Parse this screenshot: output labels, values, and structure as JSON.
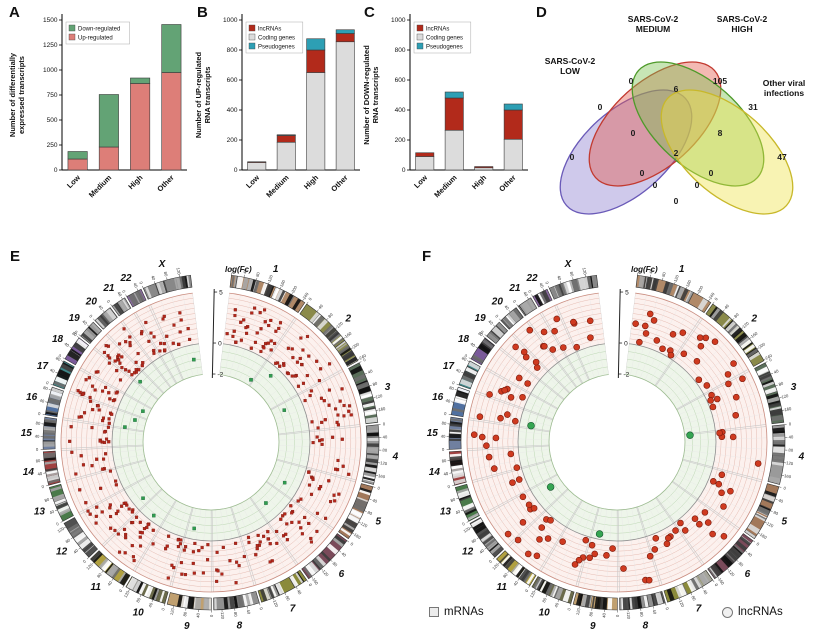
{
  "figure": {
    "panel_labels": {
      "A": "A",
      "B": "B",
      "C": "C",
      "D": "D",
      "E": "E",
      "F": "F"
    }
  },
  "circos_style": {
    "chr_colors": [
      "#b08968",
      "#8a8a4a",
      "#5a6e5a",
      "#9a9a9a",
      "#a2785a",
      "#7a4a5a",
      "#8a8a3a",
      "#909090",
      "#c0a070",
      "#6a6a4a",
      "#b0a040",
      "#505050",
      "#4a7a4a",
      "#a04040",
      "#7080a0",
      "#5070a0",
      "#40888a",
      "#7a5a9a",
      "#909090",
      "#606060",
      "#a0a0a0",
      "#8a6aa0",
      "#888888"
    ],
    "band_colors": [
      "#111111",
      "#3d3d3d",
      "#6e6e6e",
      "#a8a8a8",
      "#dddddd",
      "#ffffff"
    ],
    "pos_zone_bg": "#fcf1ee",
    "pos_grid": "#e6bcb2",
    "pos_edge": "#c98c7f",
    "neg_zone_bg": "#eef5ea",
    "neg_grid": "#bdd7b4",
    "neg_edge": "#9cbb90",
    "spoke": "#c9c9c9",
    "spoke_light": "#e6e6e6",
    "zero_line": "#8f8f8f"
  },
  "chart_data": [
    {
      "id": "A",
      "type": "bar",
      "stacked": true,
      "ylabel": "Number of differentially expressed transcripts",
      "ylabel_lines": [
        "Number of differentially",
        "expressed transcripts"
      ],
      "categories": [
        "Low",
        "Medium",
        "High",
        "Other"
      ],
      "series": [
        {
          "name": "Down-regulated",
          "color": "#63a375",
          "values": [
            75,
            525,
            55,
            480
          ]
        },
        {
          "name": "Up-regulated",
          "color": "#dd7e78",
          "values": [
            110,
            230,
            865,
            975
          ]
        }
      ],
      "stack_order": [
        "Up-regulated",
        "Down-regulated"
      ],
      "ylim": [
        0,
        1500
      ],
      "yticks": [
        0,
        250,
        500,
        750,
        1000,
        1250,
        1500
      ],
      "legend_position": "top-left"
    },
    {
      "id": "B",
      "type": "bar",
      "stacked": true,
      "ylabel": "Number of UP-regulated RNA transcripts",
      "ylabel_lines": [
        "Number of UP-regulated",
        "RNA transcripts"
      ],
      "categories": [
        "Low",
        "Medium",
        "High",
        "Other"
      ],
      "series": [
        {
          "name": "lncRNAs",
          "color": "#b22a1b",
          "values": [
            5,
            45,
            150,
            55
          ]
        },
        {
          "name": "Coding genes",
          "color": "#dcdcdc",
          "values": [
            50,
            185,
            650,
            855
          ]
        },
        {
          "name": "Pseudogenes",
          "color": "#2d9fb4",
          "values": [
            0,
            5,
            75,
            25
          ]
        }
      ],
      "stack_order": [
        "Coding genes",
        "lncRNAs",
        "Pseudogenes"
      ],
      "ylim": [
        0,
        1000
      ],
      "yticks": [
        0,
        200,
        400,
        600,
        800,
        1000
      ],
      "legend_position": "top-left"
    },
    {
      "id": "C",
      "type": "bar",
      "stacked": true,
      "ylabel": "Number of DOWN-regulated RNA transcripts",
      "ylabel_lines": [
        "Number of DOWN-regulated",
        "RNA transcripts"
      ],
      "categories": [
        "Low",
        "Medium",
        "High",
        "Other"
      ],
      "series": [
        {
          "name": "lncRNAs",
          "color": "#b22a1b",
          "values": [
            25,
            215,
            8,
            195
          ]
        },
        {
          "name": "Coding genes",
          "color": "#dcdcdc",
          "values": [
            90,
            265,
            15,
            205
          ]
        },
        {
          "name": "Pseudogenes",
          "color": "#2d9fb4",
          "values": [
            0,
            40,
            0,
            40
          ]
        }
      ],
      "stack_order": [
        "Coding genes",
        "lncRNAs",
        "Pseudogenes"
      ],
      "ylim": [
        0,
        1000
      ],
      "yticks": [
        0,
        200,
        400,
        600,
        800,
        1000
      ],
      "legend_position": "top-left"
    },
    {
      "id": "D",
      "type": "venn4",
      "sets": [
        {
          "name": "SARS-CoV-2 LOW",
          "label_lines": [
            "SARS-CoV-2",
            "LOW"
          ],
          "color": "#8c7fd0",
          "stroke": "#6a5ab8"
        },
        {
          "name": "SARS-CoV-2 MEDIUM",
          "label_lines": [
            "SARS-CoV-2",
            "MEDIUM"
          ],
          "color": "#e2574b",
          "stroke": "#c23a30"
        },
        {
          "name": "SARS-CoV-2 HIGH",
          "label_lines": [
            "SARS-CoV-2",
            "HIGH"
          ],
          "color": "#79c14f",
          "stroke": "#4e9a2a"
        },
        {
          "name": "Other viral infections",
          "label_lines": [
            "Other viral",
            "infections"
          ],
          "color": "#efe24a",
          "stroke": "#c8b82a"
        }
      ],
      "regions": {
        "low": 0,
        "medium": 0,
        "high": 105,
        "other": 47,
        "low_medium": 0,
        "medium_high": 6,
        "high_other": 31,
        "low_high": 0,
        "medium_other": 0,
        "low_other": 0,
        "low_medium_high": 0,
        "medium_high_other": 8,
        "low_medium_other": 0,
        "low_high_other": 0,
        "low_medium_high_other": 2
      }
    },
    {
      "id": "E",
      "type": "circos-scatter",
      "legend": "mRNAs",
      "marker": "square",
      "axis_label": "log(Fc)",
      "axis_tick_labels": [
        "5",
        "0",
        "-2"
      ],
      "axis_values": [
        5,
        0,
        -2
      ],
      "dot_color": "#b3271b",
      "dot_edge": "#6e140c",
      "neg_dot_color": "#2f9e4f",
      "chromosomes": [
        {
          "name": "1",
          "len": 249,
          "pos": 35,
          "neg": 1
        },
        {
          "name": "2",
          "len": 243,
          "pos": 28,
          "neg": 1
        },
        {
          "name": "3",
          "len": 198,
          "pos": 22,
          "neg": 1
        },
        {
          "name": "4",
          "len": 190,
          "pos": 12,
          "neg": 0
        },
        {
          "name": "5",
          "len": 182,
          "pos": 18,
          "neg": 1
        },
        {
          "name": "6",
          "len": 171,
          "pos": 20,
          "neg": 1
        },
        {
          "name": "7",
          "len": 159,
          "pos": 16,
          "neg": 0
        },
        {
          "name": "8",
          "len": 146,
          "pos": 12,
          "neg": 0
        },
        {
          "name": "9",
          "len": 141,
          "pos": 14,
          "neg": 1
        },
        {
          "name": "10",
          "len": 134,
          "pos": 12,
          "neg": 0
        },
        {
          "name": "11",
          "len": 135,
          "pos": 22,
          "neg": 1
        },
        {
          "name": "12",
          "len": 133,
          "pos": 20,
          "neg": 1
        },
        {
          "name": "13",
          "len": 115,
          "pos": 6,
          "neg": 0
        },
        {
          "name": "14",
          "len": 107,
          "pos": 10,
          "neg": 0
        },
        {
          "name": "15",
          "len": 102,
          "pos": 12,
          "neg": 0
        },
        {
          "name": "16",
          "len": 90,
          "pos": 14,
          "neg": 2
        },
        {
          "name": "17",
          "len": 83,
          "pos": 18,
          "neg": 1
        },
        {
          "name": "18",
          "len": 80,
          "pos": 5,
          "neg": 0
        },
        {
          "name": "19",
          "len": 59,
          "pos": 20,
          "neg": 1
        },
        {
          "name": "20",
          "len": 63,
          "pos": 10,
          "neg": 0
        },
        {
          "name": "21",
          "len": 48,
          "pos": 5,
          "neg": 0
        },
        {
          "name": "22",
          "len": 51,
          "pos": 8,
          "neg": 0
        },
        {
          "name": "X",
          "len": 155,
          "pos": 12,
          "neg": 1
        }
      ]
    },
    {
      "id": "F",
      "type": "circos-scatter",
      "legend": "lncRNAs",
      "marker": "circle",
      "axis_label": "log(Fc)",
      "axis_tick_labels": [
        "5",
        "0",
        "-2"
      ],
      "axis_values": [
        5,
        0,
        -2
      ],
      "dot_color": "#cf3a20",
      "dot_edge": "#7a1a0c",
      "neg_dot_color": "#35a552",
      "chromosomes": [
        {
          "name": "1",
          "len": 249,
          "pos": 12,
          "neg": 0
        },
        {
          "name": "2",
          "len": 243,
          "pos": 10,
          "neg": 0
        },
        {
          "name": "3",
          "len": 198,
          "pos": 8,
          "neg": 0
        },
        {
          "name": "4",
          "len": 190,
          "pos": 5,
          "neg": 1
        },
        {
          "name": "5",
          "len": 182,
          "pos": 6,
          "neg": 0
        },
        {
          "name": "6",
          "len": 171,
          "pos": 8,
          "neg": 0
        },
        {
          "name": "7",
          "len": 159,
          "pos": 6,
          "neg": 0
        },
        {
          "name": "8",
          "len": 146,
          "pos": 4,
          "neg": 0
        },
        {
          "name": "9",
          "len": 141,
          "pos": 5,
          "neg": 1
        },
        {
          "name": "10",
          "len": 134,
          "pos": 5,
          "neg": 0
        },
        {
          "name": "11",
          "len": 135,
          "pos": 8,
          "neg": 0
        },
        {
          "name": "12",
          "len": 133,
          "pos": 6,
          "neg": 1
        },
        {
          "name": "13",
          "len": 115,
          "pos": 2,
          "neg": 0
        },
        {
          "name": "14",
          "len": 107,
          "pos": 4,
          "neg": 0
        },
        {
          "name": "15",
          "len": 102,
          "pos": 4,
          "neg": 0
        },
        {
          "name": "16",
          "len": 90,
          "pos": 4,
          "neg": 1
        },
        {
          "name": "17",
          "len": 83,
          "pos": 6,
          "neg": 0
        },
        {
          "name": "18",
          "len": 80,
          "pos": 2,
          "neg": 0
        },
        {
          "name": "19",
          "len": 59,
          "pos": 5,
          "neg": 0
        },
        {
          "name": "20",
          "len": 63,
          "pos": 3,
          "neg": 0
        },
        {
          "name": "21",
          "len": 48,
          "pos": 2,
          "neg": 0
        },
        {
          "name": "22",
          "len": 51,
          "pos": 3,
          "neg": 0
        },
        {
          "name": "X",
          "len": 155,
          "pos": 5,
          "neg": 0
        }
      ]
    }
  ]
}
